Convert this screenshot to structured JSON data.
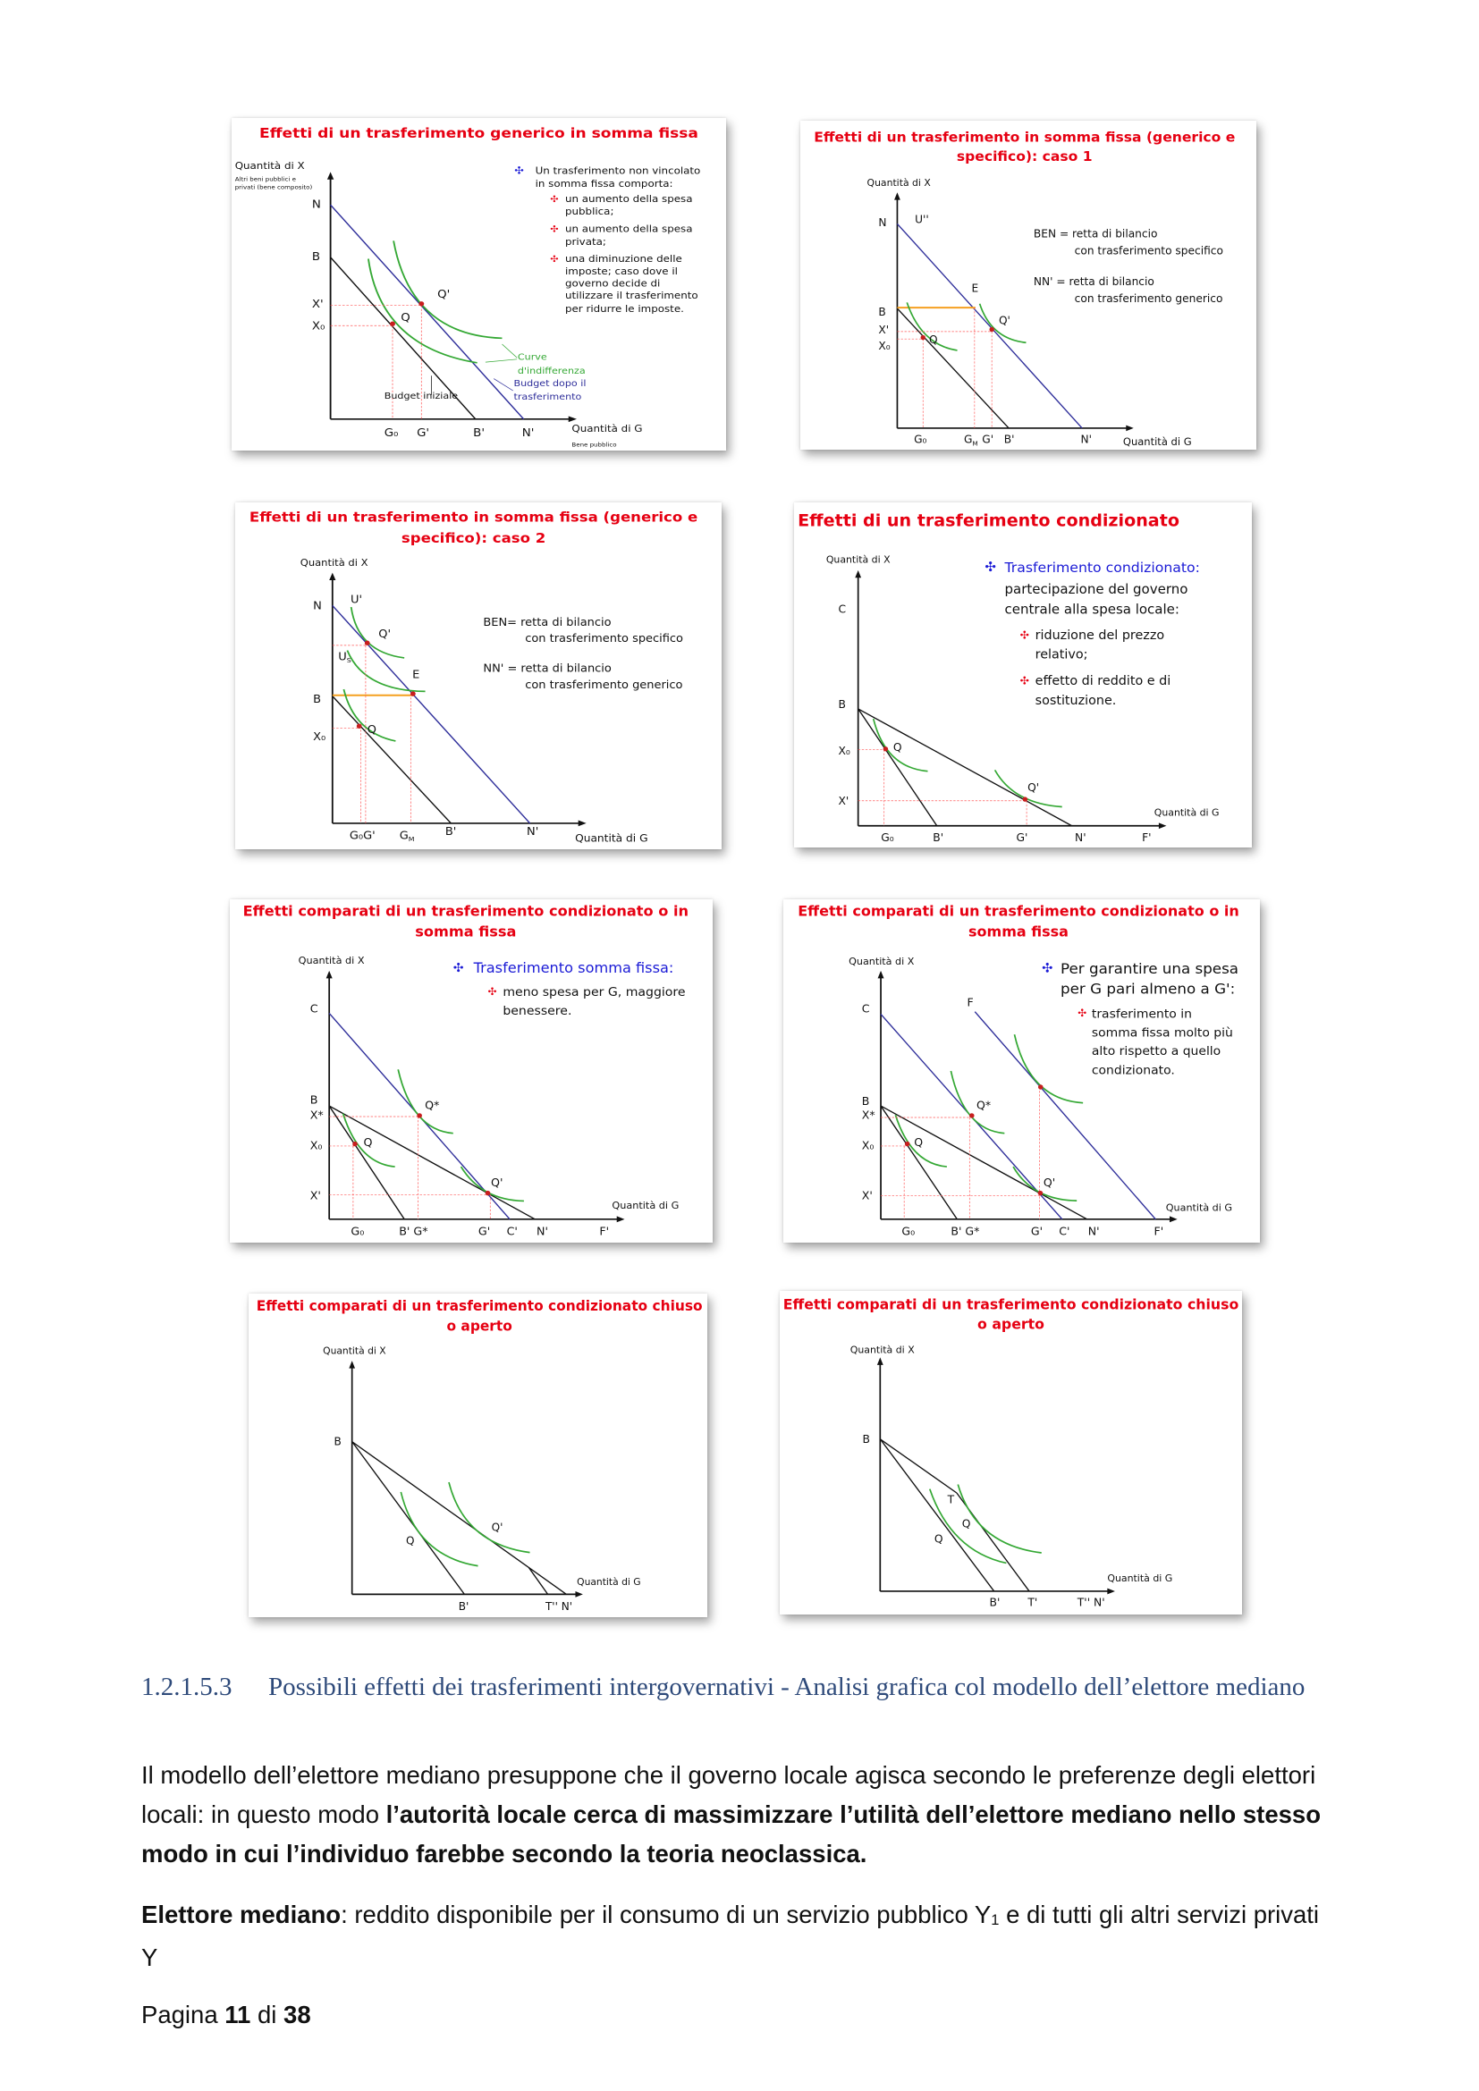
{
  "slides": [
    {
      "title": [
        "Effetti di un trasferimento generico in somma fissa"
      ],
      "axis_y": [
        "Quantità di X",
        "Altri beni pubblici e",
        "privati (bene composito)"
      ],
      "axis_x": [
        "Quantità di G",
        "Bene pubblico"
      ],
      "labels": [
        "N",
        "B",
        "X'",
        "X₀",
        "Q",
        "Q'",
        "G₀",
        "G'",
        "B'",
        "N'",
        "Curve",
        "d'indifferenza",
        "Budget dopo il",
        "trasferimento",
        "Budget iniziale"
      ],
      "notes": [
        "Un trasferimento non vincolato",
        "in somma fissa comporta:",
        "un aumento della spesa",
        "pubblica;",
        "un aumento della spesa",
        "privata;",
        "una diminuzione delle",
        "imposte; caso dove il",
        "governo decide di",
        "utilizzare il trasferimento",
        "per ridurre le imposte."
      ]
    },
    {
      "title": [
        "Effetti di un trasferimento in somma fissa (generico e",
        "specifico): caso 1"
      ],
      "axis_y": [
        "Quantità di X"
      ],
      "axis_x": [
        "Quantità di G"
      ],
      "labels": [
        "N",
        "U''",
        "B",
        "X'",
        "X₀",
        "E",
        "Q",
        "Q'",
        "G₀",
        "G",
        "M",
        "G'",
        "B'",
        "N'"
      ],
      "notes": [
        "BEN = retta di bilancio",
        "con trasferimento specifico",
        "NN' =  retta di bilancio",
        "con trasferimento generico"
      ]
    },
    {
      "title": [
        "Effetti di un trasferimento in somma fissa (generico e",
        "specifico): caso 2"
      ],
      "axis_y": [
        "Quantità di X"
      ],
      "axis_x": [
        "Quantità di G"
      ],
      "labels": [
        "N",
        "U'",
        "Q'",
        "U",
        "S",
        "E",
        "B",
        "Q",
        "X₀",
        "G₀G'",
        "G",
        "M",
        "B'",
        "N'"
      ],
      "notes": [
        "BEN=  retta di bilancio",
        "con trasferimento specifico",
        "NN' = retta di bilancio",
        "con trasferimento generico"
      ]
    },
    {
      "title": [
        "Effetti di un trasferimento condizionato"
      ],
      "axis_y": [
        "Quantità di X"
      ],
      "axis_x": [
        "Quantità di G"
      ],
      "labels": [
        "C",
        "B",
        "X₀",
        "X'",
        "Q",
        "Q'",
        "G₀",
        "B'",
        "G'",
        "N'",
        "F'"
      ],
      "notes": [
        "Trasferimento condizionato:",
        "partecipazione del governo",
        "centrale alla spesa locale:",
        "riduzione del prezzo",
        "relativo;",
        "effetto di reddito e di",
        "sostituzione."
      ]
    },
    {
      "title": [
        "Effetti comparati di un trasferimento condizionato o in",
        "somma fissa"
      ],
      "axis_y": [
        "Quantità di X"
      ],
      "axis_x": [
        "Quantità di G"
      ],
      "labels": [
        "C",
        "B",
        "X*",
        "X₀",
        "X'",
        "Q*",
        "Q",
        "Q'",
        "G₀",
        "B' G*",
        "G'",
        "C'",
        "N'",
        "F'"
      ],
      "notes": [
        "Trasferimento somma fissa:",
        "meno spesa per G, maggiore",
        "benessere."
      ]
    },
    {
      "title": [
        "Effetti comparati di un trasferimento condizionato o in",
        "somma fissa"
      ],
      "axis_y": [
        "Quantità di X"
      ],
      "axis_x": [
        "Quantità di G"
      ],
      "labels": [
        "C",
        "F",
        "B",
        "X*",
        "X₀",
        "X'",
        "Q*",
        "Q",
        "Q'",
        "G₀",
        "B' G*",
        "G'",
        "C'",
        "N'",
        "F'"
      ],
      "notes": [
        "Per garantire una spesa",
        "per G pari almeno a G':",
        "trasferimento in",
        "somma fissa molto più",
        "alto rispetto a quello",
        "condizionato."
      ]
    },
    {
      "title": [
        "Effetti comparati di un trasferimento condizionato chiuso",
        "o aperto"
      ],
      "axis_y": [
        "Quantità di X"
      ],
      "axis_x": [
        "Quantità di G"
      ],
      "labels": [
        "B",
        "Q'",
        "Q",
        "B'",
        "T'' N'"
      ],
      "notes": []
    },
    {
      "title": [
        "Effetti comparati di un trasferimento condizionato chiuso",
        "o aperto"
      ],
      "axis_y": [
        "Quantità di X"
      ],
      "axis_x": [
        "Quantità di G"
      ],
      "labels": [
        "B",
        "T",
        "Q",
        "Q",
        "B'",
        "T'",
        "T'' N'"
      ],
      "notes": []
    }
  ],
  "section": {
    "number": "1.2.1.5.3",
    "title": "Possibili effetti dei trasferimenti intergovernativi - Analisi grafica col modello dell’elettore mediano"
  },
  "paragraph1": {
    "normal": "Il modello dell’elettore mediano presuppone che il governo locale agisca secondo le preferenze degli elettori locali: in questo modo ",
    "bold": "l’autorità locale cerca di massimizzare l’utilità dell’elettore mediano nello stesso modo in cui l’individuo farebbe secondo la teoria neoclassica."
  },
  "paragraph2": {
    "bold": "Elettore mediano",
    "text1": ": reddito disponibile per il consumo di un servizio pubblico Y",
    "sub": "1",
    "text2": " e di tutti gli altri servizi privati Y"
  },
  "footer": {
    "prefix": "Pagina ",
    "page": "11",
    "middle": " di ",
    "total": "38"
  },
  "colors": {
    "title_red": "#e60012",
    "budget_blue": "#2e2e9a",
    "indifference_green": "#34a834",
    "note_blue": "#1b1bd6",
    "guide_red": "#ff5a5a",
    "specific_orange": "#f5a020"
  }
}
